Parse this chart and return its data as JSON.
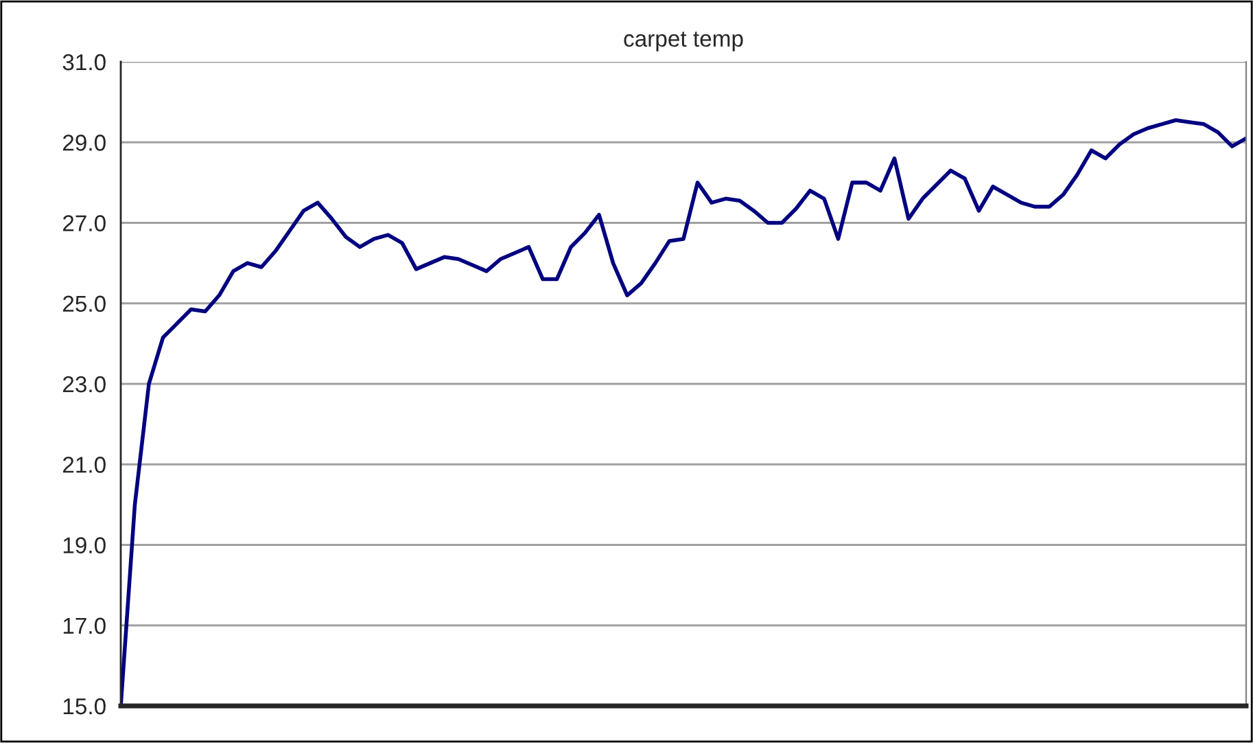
{
  "chart_data": {
    "type": "line",
    "title": "carpet temp",
    "categories": [
      null,
      null,
      null,
      null,
      null,
      null,
      null,
      null,
      null,
      null,
      null,
      null,
      null,
      null,
      null,
      null,
      null,
      null,
      null,
      null,
      null,
      null,
      null,
      null,
      null,
      null,
      null,
      null,
      null,
      null,
      null,
      null,
      null,
      null,
      null,
      null,
      null,
      null,
      null,
      null,
      null,
      null,
      null,
      null,
      null,
      null,
      null,
      null,
      null,
      null,
      null,
      null,
      null,
      null,
      null,
      null,
      null,
      null,
      null,
      null,
      null,
      null,
      null,
      null,
      null,
      null,
      null,
      null,
      null,
      null,
      null,
      null,
      null,
      null,
      null,
      null,
      null,
      null,
      null,
      null,
      null
    ],
    "series": [
      {
        "color": "#000080",
        "values": [
          15.0,
          20.0,
          23.0,
          24.15,
          24.5,
          24.85,
          24.8,
          25.2,
          25.8,
          26.0,
          25.9,
          26.3,
          26.8,
          27.3,
          27.5,
          27.1,
          26.65,
          26.4,
          26.6,
          26.7,
          26.5,
          25.85,
          26.0,
          26.15,
          26.1,
          25.95,
          25.8,
          26.1,
          26.25,
          26.4,
          25.6,
          25.6,
          26.4,
          26.75,
          27.2,
          26.0,
          25.2,
          25.5,
          26.0,
          26.55,
          26.6,
          28.0,
          27.5,
          27.6,
          27.55,
          27.3,
          27.0,
          27.0,
          27.35,
          27.8,
          27.6,
          26.6,
          28.0,
          28.0,
          27.8,
          28.6,
          27.1,
          27.6,
          27.95,
          28.3,
          28.1,
          27.3,
          27.9,
          27.7,
          27.5,
          27.4,
          27.4,
          27.7,
          28.2,
          28.8,
          28.6,
          28.95,
          29.2,
          29.35,
          29.45,
          29.55,
          29.5,
          29.45,
          29.25,
          28.9,
          29.1
        ]
      }
    ],
    "ylim": [
      15,
      31
    ],
    "yticks": [
      {
        "value": 15,
        "label": "15.0"
      },
      {
        "value": 17,
        "label": "17.0"
      },
      {
        "value": 19,
        "label": "19.0"
      },
      {
        "value": 21,
        "label": "21.0"
      },
      {
        "value": 23,
        "label": "23.0"
      },
      {
        "value": 25,
        "label": "25.0"
      },
      {
        "value": 27,
        "label": "27.0"
      },
      {
        "value": 29,
        "label": "29.0"
      },
      {
        "value": 31,
        "label": "31.0"
      }
    ],
    "grid": "y",
    "line_style": "solid"
  }
}
